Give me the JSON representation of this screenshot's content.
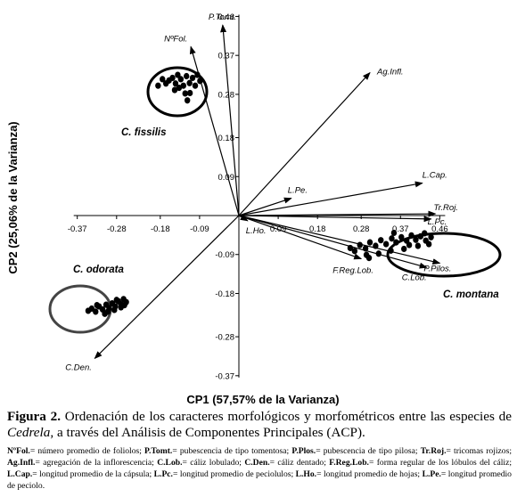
{
  "chart_data": {
    "type": "scatter",
    "title": "",
    "xlabel": "CP1 (57,57% de la Varianza)",
    "ylabel": "CP2 (25,06% de la Varianza)",
    "xlim": [
      -0.37,
      0.46
    ],
    "ylim": [
      -0.37,
      0.46
    ],
    "x_ticks": [
      "-0.37",
      "-0.28",
      "-0.18",
      "-0.09",
      "0.09",
      "0.18",
      "0.28",
      "0.37",
      "0.46"
    ],
    "y_ticks": [
      "0.46",
      "0.37",
      "0.28",
      "0.18",
      "0.09",
      "-0.09",
      "-0.18",
      "-0.28",
      "-0.37"
    ],
    "grid": false,
    "vectors": [
      {
        "label": "P.Tomt.",
        "x": -0.037,
        "y": 0.44
      },
      {
        "label": "NºFol.",
        "x": -0.11,
        "y": 0.39
      },
      {
        "label": "Ag.Infl.",
        "x": 0.3,
        "y": 0.33
      },
      {
        "label": "L.Cap.",
        "x": 0.42,
        "y": 0.075
      },
      {
        "label": "Tr.Roj.",
        "x": 0.45,
        "y": 0.004
      },
      {
        "label": "L.Pc.",
        "x": 0.44,
        "y": -0.008
      },
      {
        "label": "L.Pe.",
        "x": 0.12,
        "y": 0.04
      },
      {
        "label": "L.Ho.",
        "x": 0.02,
        "y": -0.012
      },
      {
        "label": "P.Pilos.",
        "x": 0.46,
        "y": -0.11
      },
      {
        "label": "C.Lob.",
        "x": 0.43,
        "y": -0.12
      },
      {
        "label": "F.Reg.Lob.",
        "x": 0.28,
        "y": -0.1
      },
      {
        "label": "C.Den.",
        "x": -0.33,
        "y": -0.33
      }
    ],
    "groups": [
      {
        "name": "C. fissilis",
        "points": [
          [
            -0.185,
            0.3
          ],
          [
            -0.175,
            0.315
          ],
          [
            -0.167,
            0.305
          ],
          [
            -0.16,
            0.312
          ],
          [
            -0.152,
            0.318
          ],
          [
            -0.145,
            0.305
          ],
          [
            -0.14,
            0.325
          ],
          [
            -0.133,
            0.315
          ],
          [
            -0.127,
            0.3
          ],
          [
            -0.12,
            0.322
          ],
          [
            -0.113,
            0.306
          ],
          [
            -0.106,
            0.318
          ],
          [
            -0.1,
            0.3
          ],
          [
            -0.095,
            0.325
          ],
          [
            -0.123,
            0.282
          ],
          [
            -0.112,
            0.283
          ],
          [
            -0.147,
            0.29
          ],
          [
            -0.089,
            0.311
          ],
          [
            -0.137,
            0.295
          ],
          [
            -0.118,
            0.266
          ]
        ]
      },
      {
        "name": "C. odorata",
        "points": [
          [
            -0.345,
            -0.22
          ],
          [
            -0.337,
            -0.215
          ],
          [
            -0.328,
            -0.222
          ],
          [
            -0.32,
            -0.21
          ],
          [
            -0.312,
            -0.217
          ],
          [
            -0.304,
            -0.206
          ],
          [
            -0.297,
            -0.214
          ],
          [
            -0.29,
            -0.203
          ],
          [
            -0.283,
            -0.21
          ],
          [
            -0.276,
            -0.198
          ],
          [
            -0.27,
            -0.205
          ],
          [
            -0.264,
            -0.193
          ],
          [
            -0.258,
            -0.2
          ],
          [
            -0.3,
            -0.222
          ],
          [
            -0.285,
            -0.218
          ],
          [
            -0.27,
            -0.212
          ],
          [
            -0.262,
            -0.207
          ],
          [
            -0.28,
            -0.195
          ],
          [
            -0.325,
            -0.207
          ],
          [
            -0.307,
            -0.227
          ]
        ]
      },
      {
        "name": "C. montana",
        "points": [
          [
            0.255,
            -0.075
          ],
          [
            0.265,
            -0.082
          ],
          [
            0.277,
            -0.068
          ],
          [
            0.29,
            -0.076
          ],
          [
            0.3,
            -0.062
          ],
          [
            0.313,
            -0.07
          ],
          [
            0.325,
            -0.057
          ],
          [
            0.337,
            -0.066
          ],
          [
            0.35,
            -0.053
          ],
          [
            0.36,
            -0.062
          ],
          [
            0.372,
            -0.05
          ],
          [
            0.384,
            -0.058
          ],
          [
            0.395,
            -0.046
          ],
          [
            0.405,
            -0.056
          ],
          [
            0.416,
            -0.048
          ],
          [
            0.428,
            -0.058
          ],
          [
            0.435,
            -0.066
          ],
          [
            0.44,
            -0.05
          ],
          [
            0.41,
            -0.07
          ],
          [
            0.378,
            -0.077
          ],
          [
            0.348,
            -0.081
          ],
          [
            0.32,
            -0.088
          ],
          [
            0.292,
            -0.091
          ],
          [
            0.298,
            -0.098
          ],
          [
            0.355,
            -0.04
          ],
          [
            0.39,
            -0.068
          ],
          [
            0.425,
            -0.041
          ]
        ]
      }
    ],
    "group_labels": [
      "C. fissilis",
      "C. odorata",
      "C. montana"
    ]
  },
  "caption": {
    "fig_label": "Figura 2.",
    "text_1": " Ordenación de los caracteres morfológicos y morfométricos entre las especies de ",
    "italic_1": "Cedrela",
    "text_2": ", a través del Análisis de Componentes Principales (ACP)."
  },
  "legend": [
    {
      "abbr": "NºFol.",
      "desc": "= número promedio de foliolos; "
    },
    {
      "abbr": "P.Tomt.",
      "desc": "= pubescencia de tipo tomentosa; "
    },
    {
      "abbr": "P.Plos.",
      "desc": "= pubescencia de tipo pilosa; "
    },
    {
      "abbr": "Tr.Roj.",
      "desc": "= tricomas rojizos; "
    },
    {
      "abbr": "Ag.Infl.",
      "desc": "= agregación de la inflorescencia; "
    },
    {
      "abbr": "C.Lob.",
      "desc": "= cáliz lobulado; "
    },
    {
      "abbr": "C.Den.",
      "desc": "= cáliz dentado; "
    },
    {
      "abbr": "F.Reg.Lob.",
      "desc": "= forma regular de los lóbulos del cáliz; "
    },
    {
      "abbr": "L.Cap.",
      "desc": "= longitud promedio de la cápsula; "
    },
    {
      "abbr": "L.Pc.",
      "desc": "= longitud promedio de peciolulos; "
    },
    {
      "abbr": "L.Ho.",
      "desc": "= longitud promedio de hojas; "
    },
    {
      "abbr": "L.Pe.",
      "desc": "= longitud promedio de peciolo."
    }
  ]
}
